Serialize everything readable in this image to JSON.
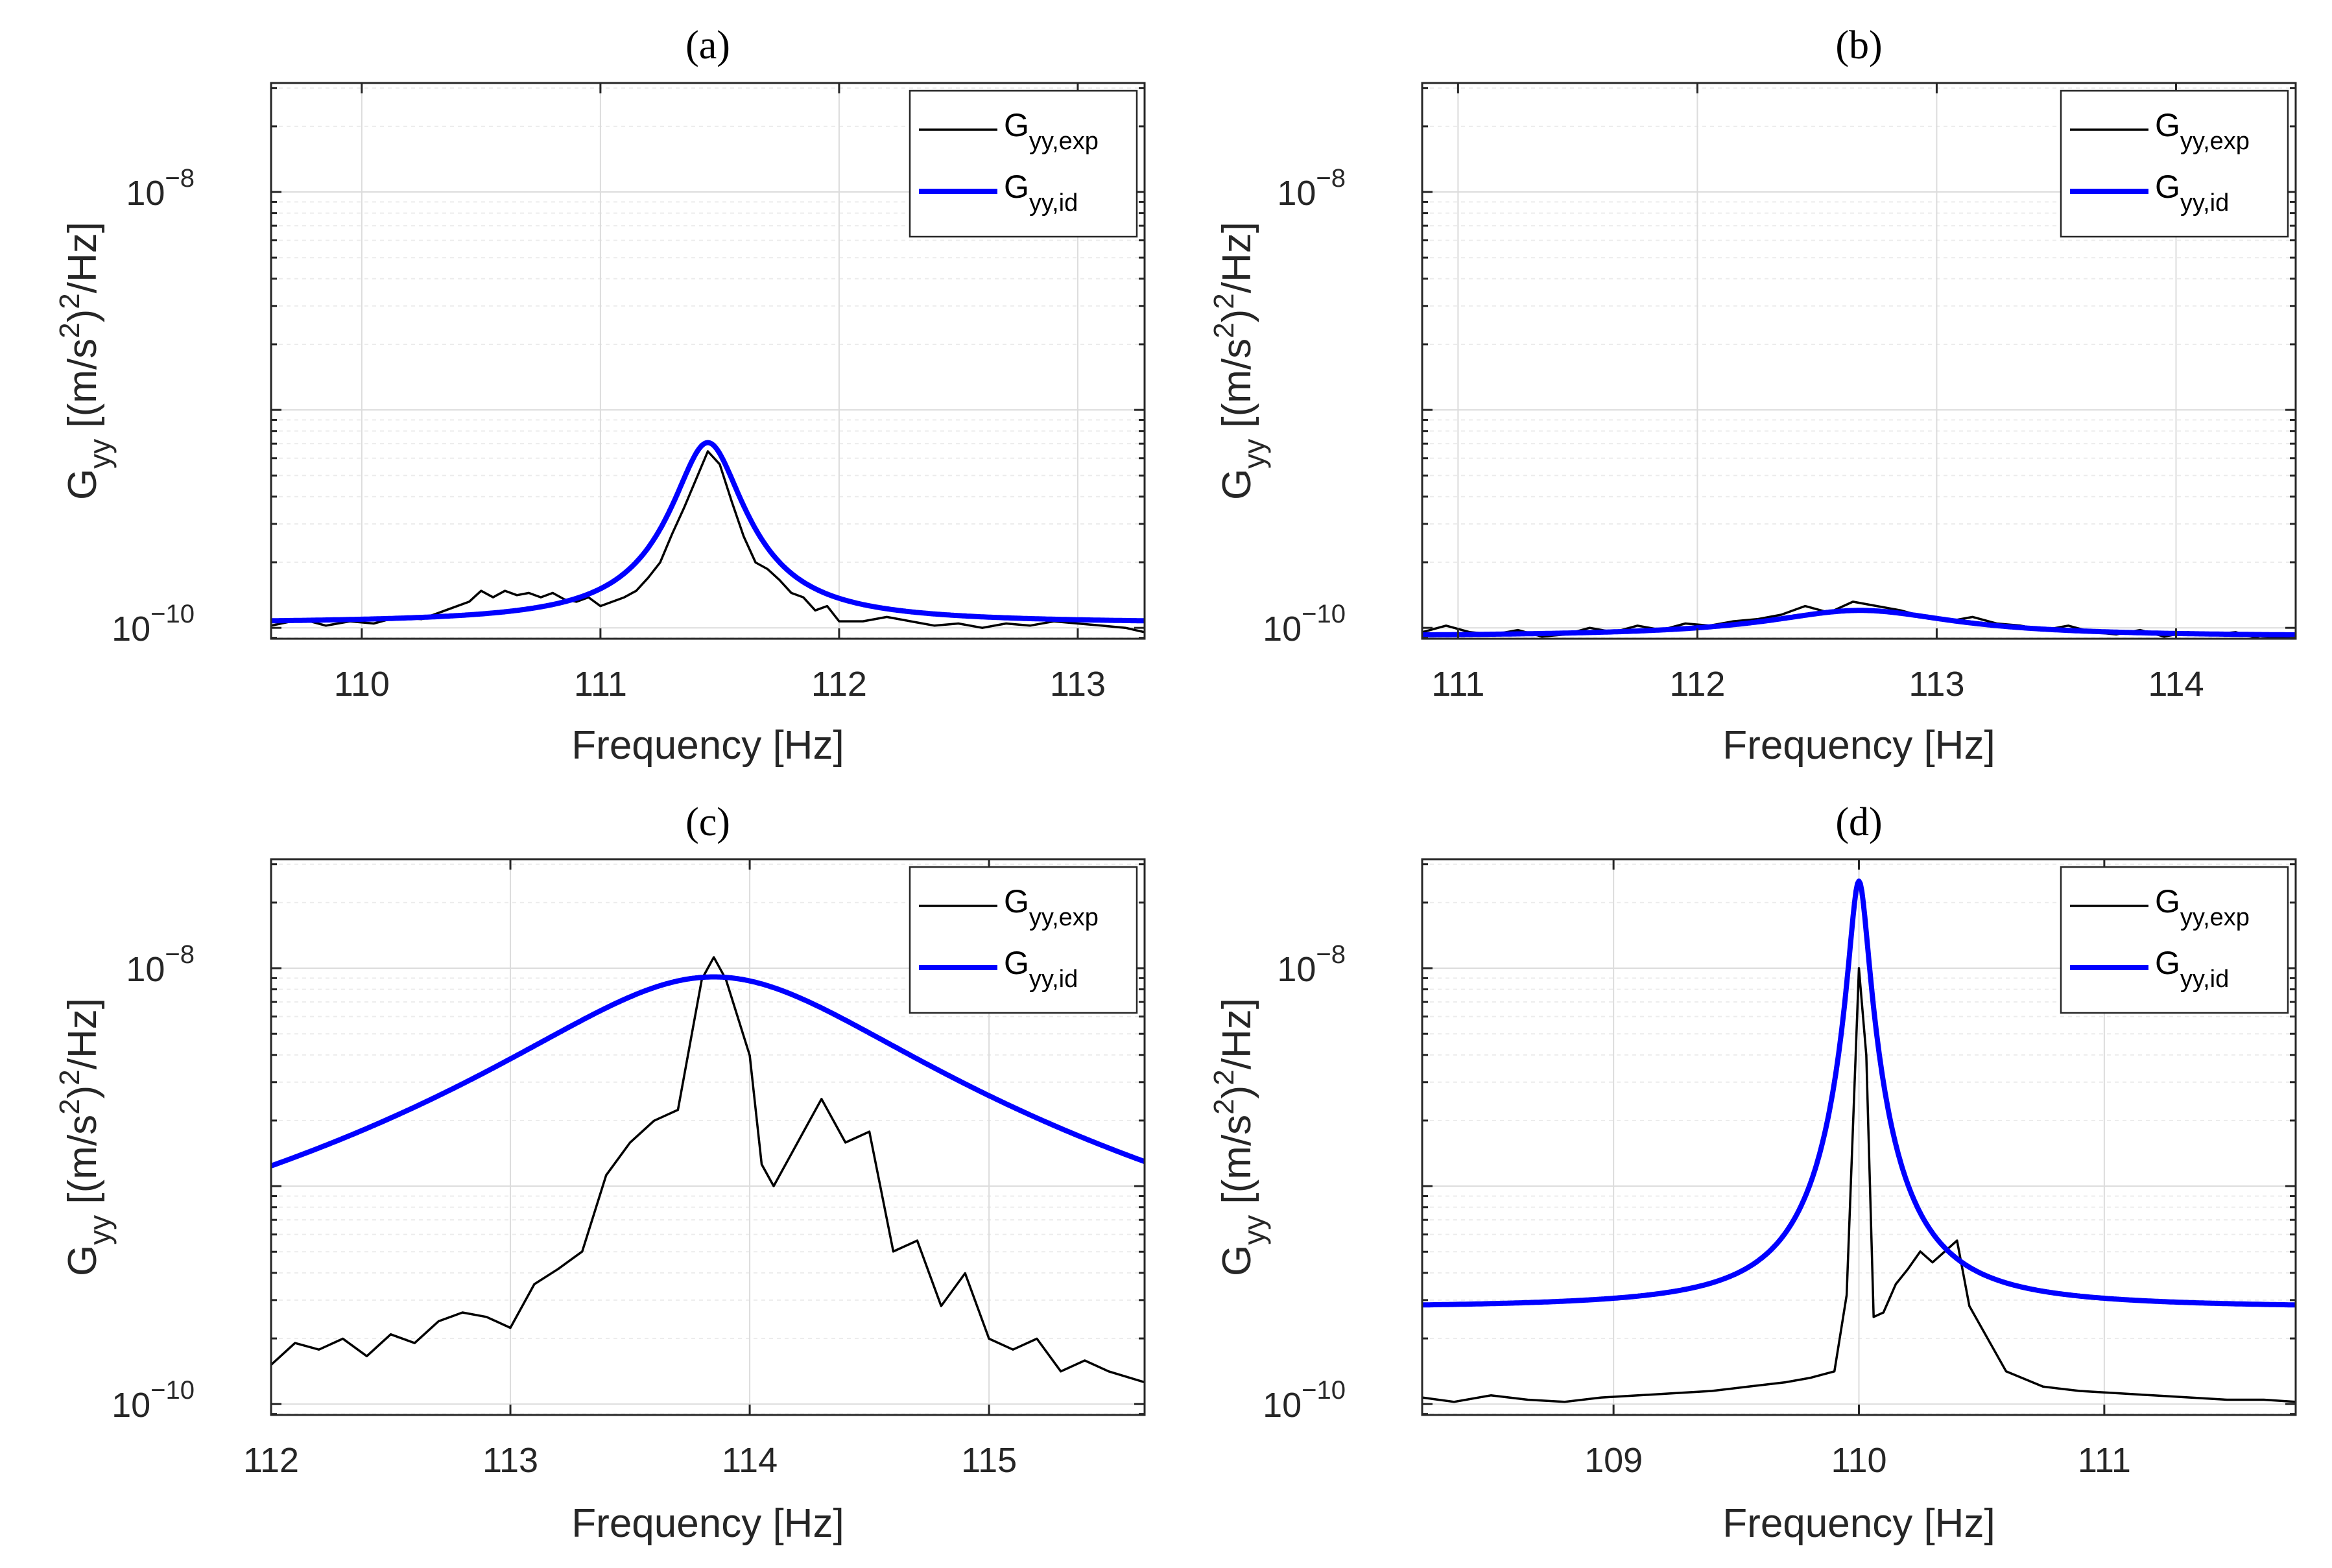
{
  "colors": {
    "exp": "#000000",
    "id": "#0000ff",
    "grid": "#dcdcdc",
    "axis": "#262626"
  },
  "chart_data": [
    {
      "type": "line",
      "panel": "(a)",
      "title": "(a)",
      "xlabel": "Frequency [Hz]",
      "ylabel_main": "G",
      "ylabel_sub": "yy",
      "ylabel_rest": " [(m/s",
      "ylabel_sup": "2",
      "ylabel_end": ")",
      "ylabel_sup2": "2",
      "ylabel_tail": "/Hz]",
      "xlim": [
        109.62,
        113.28
      ],
      "ylim_log10": [
        -10.05,
        -7.5
      ],
      "xticks": [
        110,
        111,
        112,
        113
      ],
      "xtick_labels": [
        "110",
        "111",
        "112",
        "113"
      ],
      "yticks_log10": [
        -10,
        -8
      ],
      "ytick_base": "10",
      "ytick_exps": [
        "−10",
        "−8"
      ],
      "legend": {
        "position": "top-right",
        "exp_main": "G",
        "exp_sub": "yy,exp",
        "id_main": "G",
        "id_sub": "yy,id"
      },
      "series": [
        {
          "name": "G_yy,exp",
          "x": [
            109.62,
            109.75,
            109.85,
            109.95,
            110.05,
            110.15,
            110.25,
            110.35,
            110.45,
            110.5,
            110.55,
            110.6,
            110.65,
            110.7,
            110.75,
            110.8,
            110.85,
            110.9,
            110.95,
            111.0,
            111.05,
            111.1,
            111.15,
            111.2,
            111.25,
            111.3,
            111.35,
            111.4,
            111.45,
            111.5,
            111.55,
            111.6,
            111.65,
            111.7,
            111.75,
            111.8,
            111.85,
            111.9,
            111.95,
            112.0,
            112.1,
            112.2,
            112.3,
            112.4,
            112.5,
            112.6,
            112.7,
            112.8,
            112.9,
            113.0,
            113.1,
            113.2,
            113.28
          ],
          "log10y": [
            -9.99,
            -9.96,
            -9.99,
            -9.97,
            -9.98,
            -9.95,
            -9.96,
            -9.92,
            -9.88,
            -9.83,
            -9.86,
            -9.83,
            -9.85,
            -9.84,
            -9.86,
            -9.84,
            -9.87,
            -9.88,
            -9.86,
            -9.9,
            -9.88,
            -9.86,
            -9.83,
            -9.77,
            -9.7,
            -9.57,
            -9.45,
            -9.32,
            -9.19,
            -9.25,
            -9.42,
            -9.58,
            -9.7,
            -9.73,
            -9.78,
            -9.84,
            -9.86,
            -9.92,
            -9.9,
            -9.97,
            -9.97,
            -9.95,
            -9.97,
            -9.99,
            -9.98,
            -10.0,
            -9.98,
            -9.99,
            -9.97,
            -9.98,
            -9.99,
            -10.0,
            -10.02
          ]
        },
        {
          "name": "G_yy,id",
          "model": {
            "base_log10": -9.98,
            "peak_log10": -9.15,
            "f0": 111.45,
            "hw": 0.13
          }
        }
      ]
    },
    {
      "type": "line",
      "panel": "(b)",
      "title": "(b)",
      "xlabel": "Frequency [Hz]",
      "ylabel_main": "G",
      "ylabel_sub": "yy",
      "ylabel_rest": " [(m/s",
      "ylabel_sup": "2",
      "ylabel_end": ")",
      "ylabel_sup2": "2",
      "ylabel_tail": "/Hz]",
      "xlim": [
        110.85,
        114.5
      ],
      "ylim_log10": [
        -10.05,
        -7.5
      ],
      "xticks": [
        111,
        112,
        113,
        114
      ],
      "xtick_labels": [
        "111",
        "112",
        "113",
        "114"
      ],
      "yticks_log10": [
        -10,
        -8
      ],
      "ytick_base": "10",
      "ytick_exps": [
        "−10",
        "−8"
      ],
      "legend": {
        "position": "top-right",
        "exp_main": "G",
        "exp_sub": "yy,exp",
        "id_main": "G",
        "id_sub": "yy,id"
      },
      "series": [
        {
          "name": "G_yy,exp",
          "x": [
            110.85,
            110.95,
            111.05,
            111.15,
            111.25,
            111.35,
            111.45,
            111.55,
            111.65,
            111.75,
            111.85,
            111.95,
            112.05,
            112.15,
            112.25,
            112.35,
            112.45,
            112.55,
            112.65,
            112.75,
            112.85,
            112.95,
            113.05,
            113.15,
            113.25,
            113.35,
            113.45,
            113.55,
            113.65,
            113.75,
            113.85,
            113.95,
            114.05,
            114.15,
            114.25,
            114.35,
            114.5
          ],
          "log10y": [
            -10.02,
            -9.99,
            -10.02,
            -10.03,
            -10.01,
            -10.04,
            -10.03,
            -10.0,
            -10.02,
            -9.99,
            -10.01,
            -9.98,
            -9.99,
            -9.97,
            -9.96,
            -9.94,
            -9.9,
            -9.93,
            -9.88,
            -9.9,
            -9.92,
            -9.95,
            -9.97,
            -9.95,
            -9.98,
            -9.99,
            -10.01,
            -9.99,
            -10.02,
            -10.03,
            -10.01,
            -10.04,
            -10.02,
            -10.03,
            -10.02,
            -10.05,
            -10.04
          ]
        },
        {
          "name": "G_yy,id",
          "model": {
            "base_log10": -10.04,
            "peak_log10": -9.92,
            "f0": 112.68,
            "hw": 0.45
          }
        }
      ]
    },
    {
      "type": "line",
      "panel": "(c)",
      "title": "(c)",
      "xlabel": "Frequency [Hz]",
      "ylabel_main": "G",
      "ylabel_sub": "yy",
      "ylabel_rest": " [(m/s",
      "ylabel_sup": "2",
      "ylabel_end": ")",
      "ylabel_sup2": "2",
      "ylabel_tail": "/Hz]",
      "xlim": [
        112.0,
        115.65
      ],
      "ylim_log10": [
        -10.05,
        -7.5
      ],
      "xticks": [
        112,
        113,
        114,
        115
      ],
      "xtick_labels": [
        "112",
        "113",
        "114",
        "115"
      ],
      "yticks_log10": [
        -10,
        -8
      ],
      "ytick_base": "10",
      "ytick_exps": [
        "−10",
        "−8"
      ],
      "legend": {
        "position": "top-right",
        "exp_main": "G",
        "exp_sub": "yy,exp",
        "id_main": "G",
        "id_sub": "yy,id"
      },
      "series": [
        {
          "name": "G_yy,exp",
          "x": [
            112.0,
            112.1,
            112.2,
            112.3,
            112.4,
            112.5,
            112.6,
            112.7,
            112.8,
            112.9,
            113.0,
            113.1,
            113.2,
            113.3,
            113.4,
            113.5,
            113.6,
            113.7,
            113.8,
            113.85,
            113.9,
            114.0,
            114.05,
            114.1,
            114.2,
            114.3,
            114.4,
            114.5,
            114.6,
            114.7,
            114.8,
            114.9,
            115.0,
            115.1,
            115.2,
            115.3,
            115.4,
            115.5,
            115.65
          ],
          "log10y": [
            -9.82,
            -9.72,
            -9.75,
            -9.7,
            -9.78,
            -9.68,
            -9.72,
            -9.62,
            -9.58,
            -9.6,
            -9.65,
            -9.45,
            -9.38,
            -9.3,
            -8.95,
            -8.8,
            -8.7,
            -8.65,
            -8.05,
            -7.95,
            -8.05,
            -8.4,
            -8.9,
            -9.0,
            -8.8,
            -8.6,
            -8.8,
            -8.75,
            -9.3,
            -9.25,
            -9.55,
            -9.4,
            -9.7,
            -9.75,
            -9.7,
            -9.85,
            -9.8,
            -9.85,
            -9.9
          ]
        },
        {
          "name": "G_yy,id",
          "model": {
            "base_log10": -10.35,
            "peak_log10": -8.04,
            "f0": 113.85,
            "hw": 0.72
          }
        }
      ]
    },
    {
      "type": "line",
      "panel": "(d)",
      "title": "(d)",
      "xlabel": "Frequency [Hz]",
      "ylabel_main": "G",
      "ylabel_sub": "yy",
      "ylabel_rest": " [(m/s",
      "ylabel_sup": "2",
      "ylabel_end": ")",
      "ylabel_sup2": "2",
      "ylabel_tail": "/Hz]",
      "xlim": [
        108.22,
        111.78
      ],
      "ylim_log10": [
        -10.05,
        -7.5
      ],
      "xticks": [
        109,
        110,
        111
      ],
      "xtick_labels": [
        "109",
        "110",
        "111"
      ],
      "yticks_log10": [
        -10,
        -8
      ],
      "ytick_base": "10",
      "ytick_exps": [
        "−10",
        "−8"
      ],
      "legend": {
        "position": "top-right",
        "exp_main": "G",
        "exp_sub": "yy,exp",
        "id_main": "G",
        "id_sub": "yy,id"
      },
      "series": [
        {
          "name": "G_yy,exp",
          "x": [
            108.22,
            108.35,
            108.5,
            108.65,
            108.8,
            108.95,
            109.1,
            109.25,
            109.4,
            109.55,
            109.7,
            109.8,
            109.9,
            109.95,
            110.0,
            110.03,
            110.06,
            110.1,
            110.15,
            110.2,
            110.25,
            110.3,
            110.35,
            110.4,
            110.45,
            110.5,
            110.6,
            110.75,
            110.9,
            111.05,
            111.2,
            111.35,
            111.5,
            111.65,
            111.78
          ],
          "log10y": [
            -9.97,
            -9.99,
            -9.96,
            -9.98,
            -9.99,
            -9.97,
            -9.96,
            -9.95,
            -9.94,
            -9.92,
            -9.9,
            -9.88,
            -9.85,
            -9.5,
            -8.0,
            -8.4,
            -9.6,
            -9.58,
            -9.45,
            -9.38,
            -9.3,
            -9.35,
            -9.3,
            -9.25,
            -9.55,
            -9.65,
            -9.85,
            -9.92,
            -9.94,
            -9.95,
            -9.96,
            -9.97,
            -9.98,
            -9.98,
            -9.99
          ]
        },
        {
          "name": "G_yy,id",
          "model": {
            "base_log10": -9.56,
            "peak_log10": -7.6,
            "f0": 110.0,
            "hw": 0.035
          }
        }
      ]
    }
  ]
}
